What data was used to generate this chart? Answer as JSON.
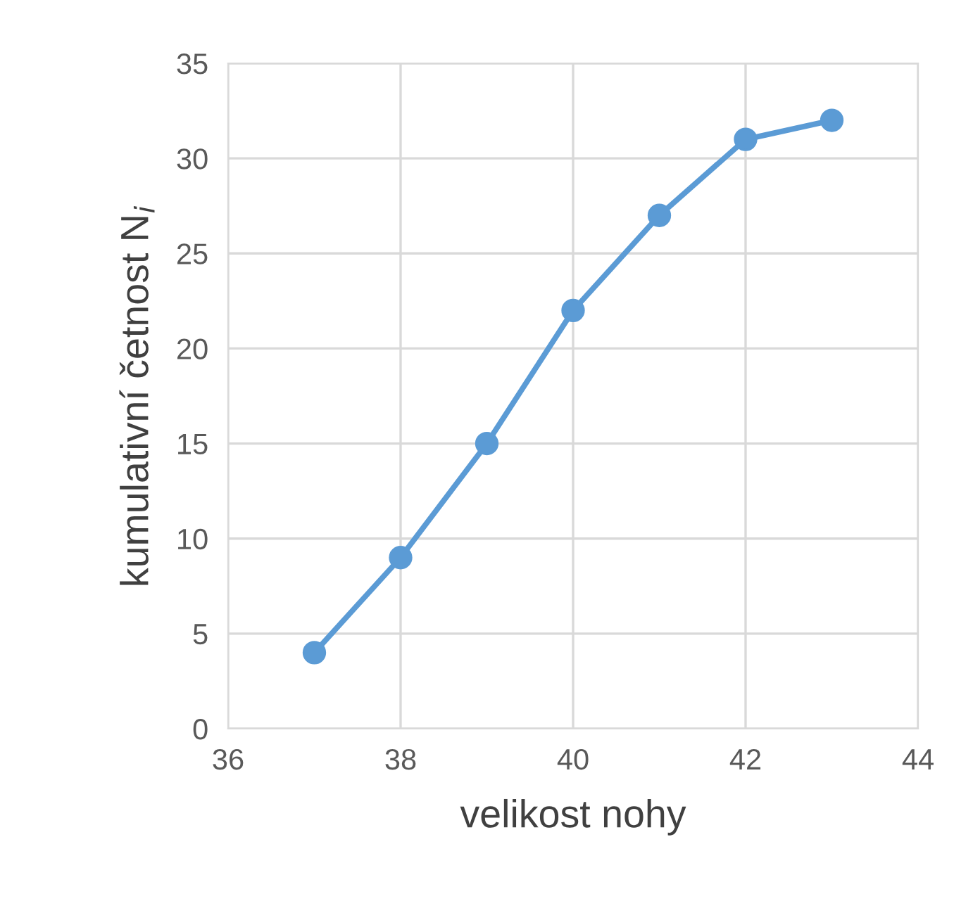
{
  "chart_data": {
    "type": "line",
    "xlabel": "velikost nohy",
    "ylabel": "kumulativní četnost N$_{i}$",
    "x": [
      37,
      38,
      39,
      40,
      41,
      42,
      43
    ],
    "series": [
      {
        "color": "#5b9bd5",
        "values": [
          4,
          9,
          15,
          22,
          27,
          31,
          32
        ]
      }
    ],
    "xlim": [
      36,
      44
    ],
    "xticks": [
      36,
      38,
      40,
      42,
      44
    ],
    "ylim": [
      0,
      35
    ],
    "yticks": [
      0,
      5,
      10,
      15,
      20,
      25,
      30,
      35
    ],
    "grid": true,
    "marker": "circle",
    "line_style": "solid"
  }
}
